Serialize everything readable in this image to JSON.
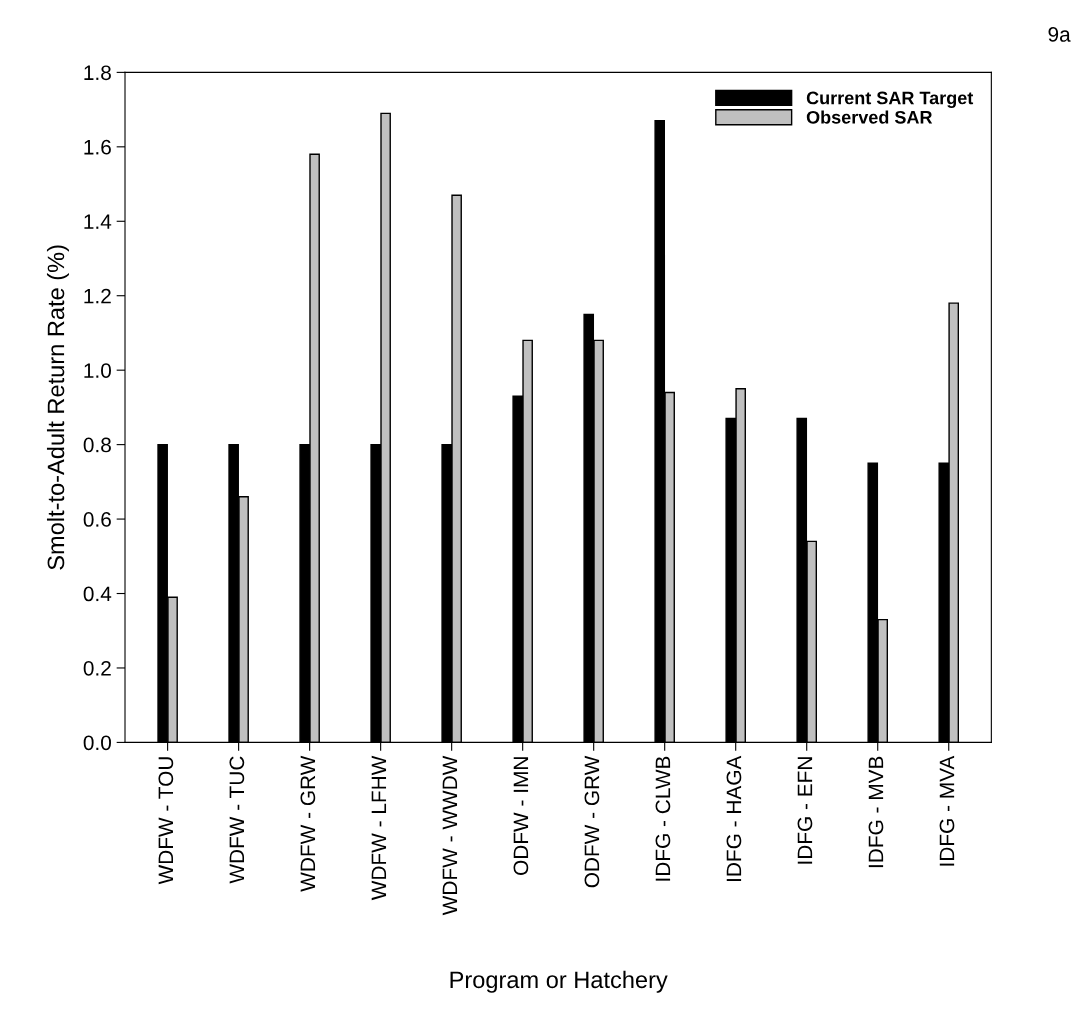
{
  "chart_data": {
    "type": "bar",
    "xlabel": "Program or Hatchery",
    "ylabel": "Smolt-to-Adult Return Rate (%)",
    "categories": [
      "WDFW - TOU",
      "WDFW - TUC",
      "WDFW - GRW",
      "WDFW - LFHW",
      "WDFW - WWDW",
      "ODFW - IMN",
      "ODFW - GRW",
      "IDFG - CLWB",
      "IDFG - HAGA",
      "IDFG - EFN",
      "IDFG - MVB",
      "IDFG - MVA"
    ],
    "series": [
      {
        "name": "Current SAR Target",
        "color": "#000000",
        "values": [
          0.8,
          0.8,
          0.8,
          0.8,
          0.8,
          0.93,
          1.15,
          1.67,
          0.87,
          0.87,
          0.75,
          0.75
        ]
      },
      {
        "name": "Observed SAR",
        "color": "#c0c0c0",
        "values": [
          0.39,
          0.66,
          1.58,
          1.69,
          1.47,
          1.08,
          1.08,
          0.94,
          0.95,
          0.54,
          0.33,
          1.18
        ]
      }
    ],
    "ylim": [
      0,
      1.8
    ],
    "yticks": [
      {
        "value": 0,
        "label": "0.0"
      },
      0.2,
      0.4,
      0.6,
      0.8,
      {
        "value": 1,
        "label": "1.0"
      },
      1.2,
      1.4,
      1.6,
      1.8
    ],
    "grid": false,
    "legend": "top right",
    "annotations": [
      "9a"
    ]
  }
}
